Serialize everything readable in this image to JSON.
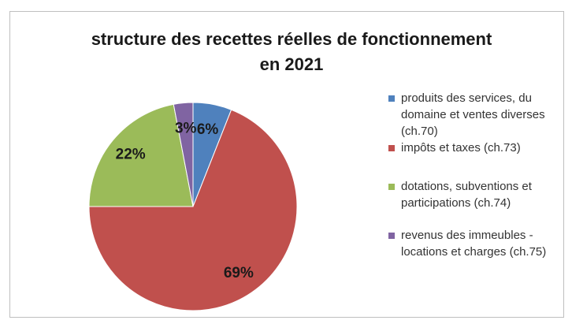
{
  "chart_data": {
    "type": "pie",
    "title": "structure des recettes réelles de fonctionnement\nen 2021",
    "categories": [
      "produits des services, du domaine et ventes diverses (ch.70)",
      "impôts et taxes (ch.73)",
      "dotations, subventions et participations (ch.74)",
      "revenus des immeubles - locations et charges (ch.75)"
    ],
    "values": [
      6,
      69,
      22,
      3
    ],
    "value_labels": [
      "6%",
      "69%",
      "22%",
      "3%"
    ],
    "colors": [
      "#4f81bd",
      "#c0504d",
      "#9bbb59",
      "#8064a2"
    ],
    "legend": "right"
  }
}
